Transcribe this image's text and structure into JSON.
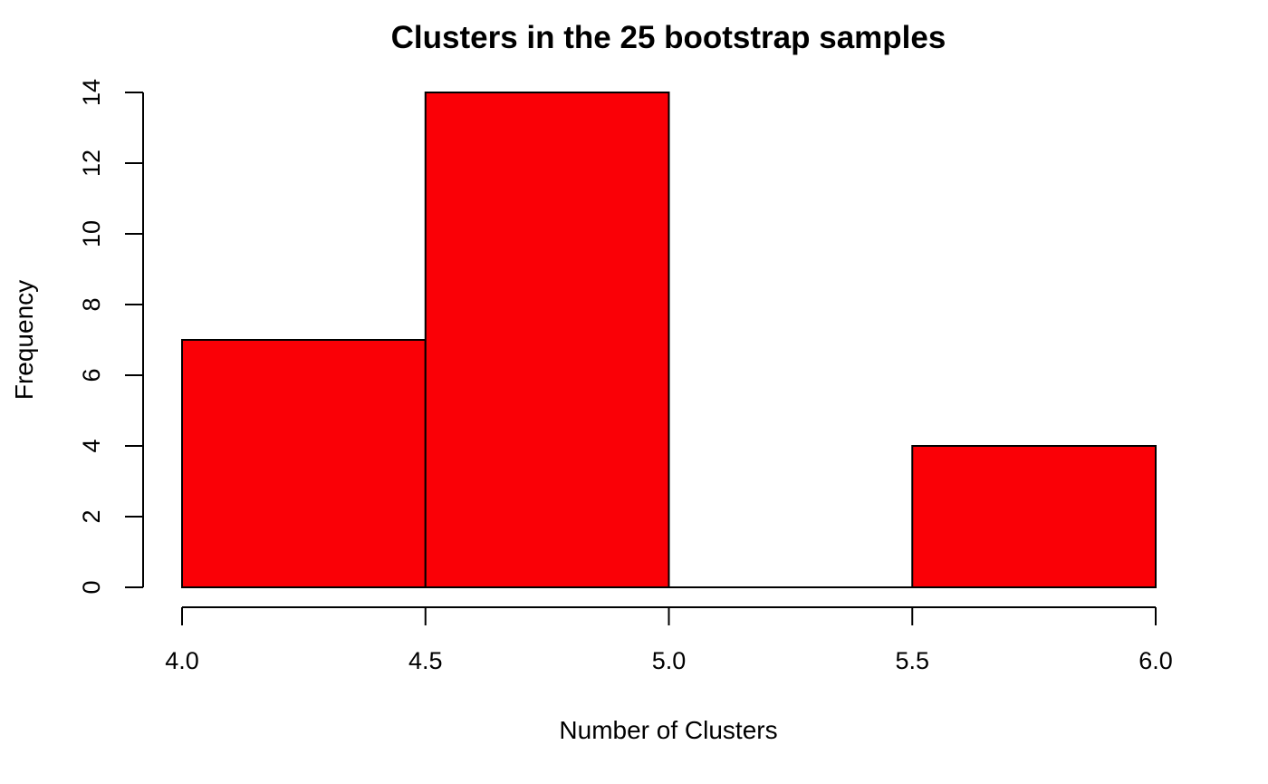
{
  "chart_data": {
    "type": "bar",
    "subtype": "histogram",
    "title": "Clusters in the 25 bootstrap samples",
    "xlabel": "Number of Clusters",
    "ylabel": "Frequency",
    "bins": [
      {
        "from": 4.0,
        "to": 4.5,
        "value": 7
      },
      {
        "from": 4.5,
        "to": 5.0,
        "value": 14
      },
      {
        "from": 5.0,
        "to": 5.5,
        "value": 0
      },
      {
        "from": 5.5,
        "to": 6.0,
        "value": 4
      }
    ],
    "xlim": [
      4.0,
      6.0
    ],
    "ylim": [
      0,
      14
    ],
    "xticks": [
      "4.0",
      "4.5",
      "5.0",
      "5.5",
      "6.0"
    ],
    "yticks": [
      "0",
      "2",
      "4",
      "6",
      "8",
      "10",
      "12",
      "14"
    ],
    "grid": false,
    "bar_color": "#FA0006",
    "edge_color": "#000000"
  }
}
